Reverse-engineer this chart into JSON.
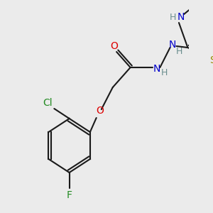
{
  "background_color": "#ebebeb",
  "figsize": [
    3.0,
    3.0
  ],
  "dpi": 100,
  "bond_color": "#1a1a1a",
  "atom_colors": {
    "C": "#1a1a1a",
    "H": "#6b8e8e",
    "N": "#0000cc",
    "O": "#dd0000",
    "S": "#9b8800",
    "F": "#228b22",
    "Cl": "#228b22"
  }
}
